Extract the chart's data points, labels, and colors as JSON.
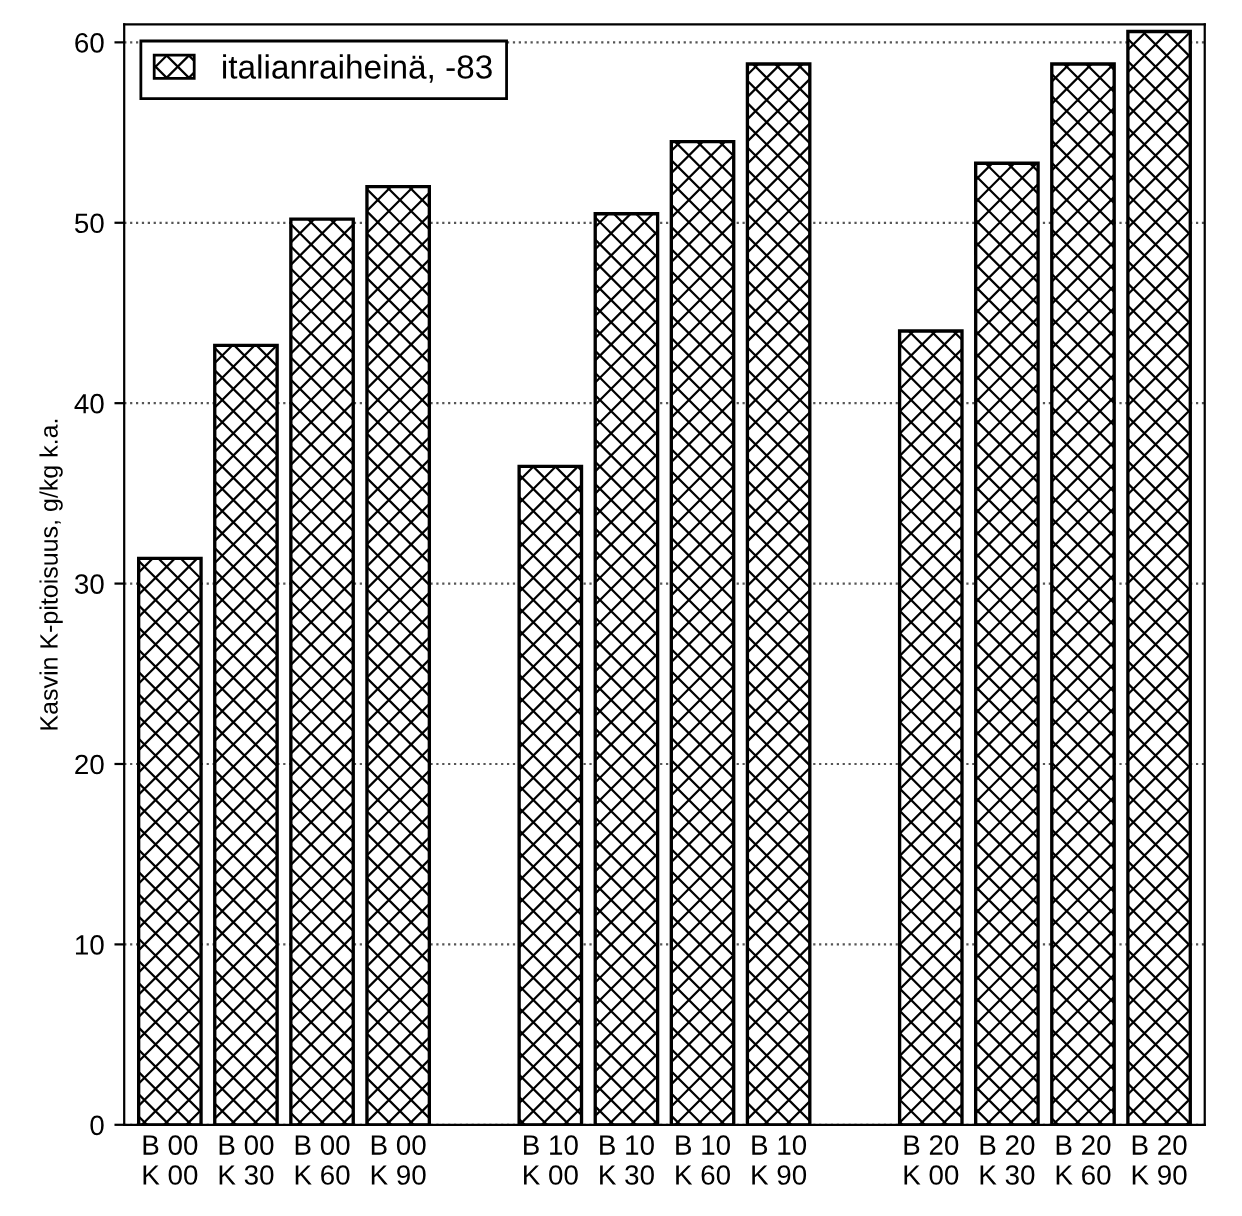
{
  "chart_data": {
    "type": "bar",
    "ylabel": "Kasvin K-pitoisuus, g/kg k.a.",
    "categories": [
      "B 00\nK 00",
      "B 00\nK 30",
      "B 00\nK 60",
      "B 00\nK 90",
      null,
      "B 10\nK 00",
      "B 10\nK 30",
      "B 10\nK 60",
      "B 10\nK 90",
      null,
      "B 20\nK 00",
      "B 20\nK 30",
      "B 20\nK 60",
      "B 20\nK 90"
    ],
    "series": [
      {
        "name": "italianraiheinä, -83",
        "color": "#000000",
        "values": [
          31.4,
          43.2,
          50.2,
          52.0,
          null,
          36.5,
          50.5,
          54.5,
          58.8,
          null,
          44.0,
          53.3,
          58.8,
          60.6
        ]
      }
    ],
    "ylim": [
      0,
      61
    ],
    "yticks": [
      0,
      10,
      20,
      30,
      40,
      50,
      60
    ],
    "grid": "y",
    "legend": "top left"
  }
}
